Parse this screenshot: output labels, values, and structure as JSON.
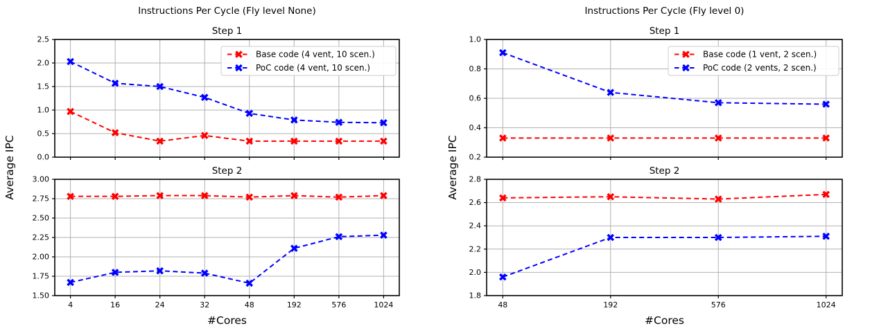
{
  "page": {
    "background": "#ffffff",
    "text_color": "#000000",
    "grid_color": "#b0b0b0",
    "spine_color": "#000000",
    "legend_border_color": "#cccccc",
    "legend_background": "#ffffff"
  },
  "chart_data": [
    {
      "type": "line",
      "title": "Instructions Per Cycle (Fly level None)",
      "xlabel": "#Cores",
      "ylabel": "Average IPC",
      "grid": true,
      "line_style": "dashed",
      "marker": "X",
      "categories": [
        "4",
        "16",
        "24",
        "32",
        "48",
        "192",
        "576",
        "1024"
      ],
      "subplots": [
        {
          "title": "Step 1",
          "ylim": [
            0.0,
            2.5
          ],
          "y_tick_labels": [
            "0.0",
            "0.5",
            "1.0",
            "1.5",
            "2.0",
            "2.5"
          ],
          "legend_visible": true,
          "legend_position": "upper right",
          "series": [
            {
              "name": "Base code (4 vent, 10 scen.)",
              "color": "#ff0000",
              "values": [
                0.97,
                0.52,
                0.34,
                0.46,
                0.34,
                0.34,
                0.34,
                0.34
              ]
            },
            {
              "name": "PoC code (4 vent, 10 scen.)",
              "color": "#0000ff",
              "values": [
                2.03,
                1.57,
                1.5,
                1.27,
                0.93,
                0.79,
                0.74,
                0.73
              ]
            }
          ]
        },
        {
          "title": "Step 2",
          "ylim": [
            1.5,
            3.0
          ],
          "y_tick_labels": [
            "1.50",
            "1.75",
            "2.00",
            "2.25",
            "2.50",
            "2.75",
            "3.00"
          ],
          "legend_visible": false,
          "series": [
            {
              "name": "Base code (4 vent, 10 scen.)",
              "color": "#ff0000",
              "values": [
                2.78,
                2.78,
                2.79,
                2.79,
                2.77,
                2.79,
                2.77,
                2.79
              ]
            },
            {
              "name": "PoC code (4 vent, 10 scen.)",
              "color": "#0000ff",
              "values": [
                1.67,
                1.8,
                1.82,
                1.79,
                1.66,
                2.11,
                2.26,
                2.28
              ]
            }
          ]
        }
      ]
    },
    {
      "type": "line",
      "title": "Instructions Per Cycle (Fly level 0)",
      "xlabel": "#Cores",
      "ylabel": "Average IPC",
      "grid": true,
      "line_style": "dashed",
      "marker": "X",
      "categories": [
        "48",
        "192",
        "576",
        "1024"
      ],
      "subplots": [
        {
          "title": "Step 1",
          "ylim": [
            0.2,
            1.0
          ],
          "y_tick_labels": [
            "0.2",
            "0.4",
            "0.6",
            "0.8",
            "1.0"
          ],
          "legend_visible": true,
          "legend_position": "upper right",
          "series": [
            {
              "name": "Base code (1 vent, 2 scen.)",
              "color": "#ff0000",
              "values": [
                0.33,
                0.33,
                0.33,
                0.33
              ]
            },
            {
              "name": "PoC code (2 vents, 2 scen.)",
              "color": "#0000ff",
              "values": [
                0.91,
                0.64,
                0.57,
                0.56
              ]
            }
          ]
        },
        {
          "title": "Step 2",
          "ylim": [
            1.8,
            2.8
          ],
          "y_tick_labels": [
            "1.8",
            "2.0",
            "2.2",
            "2.4",
            "2.6",
            "2.8"
          ],
          "legend_visible": false,
          "series": [
            {
              "name": "Base code (1 vent, 2 scen.)",
              "color": "#ff0000",
              "values": [
                2.64,
                2.65,
                2.63,
                2.67
              ]
            },
            {
              "name": "PoC code (2 vents, 2 scen.)",
              "color": "#0000ff",
              "values": [
                1.96,
                2.3,
                2.3,
                2.31
              ]
            }
          ]
        }
      ]
    }
  ]
}
